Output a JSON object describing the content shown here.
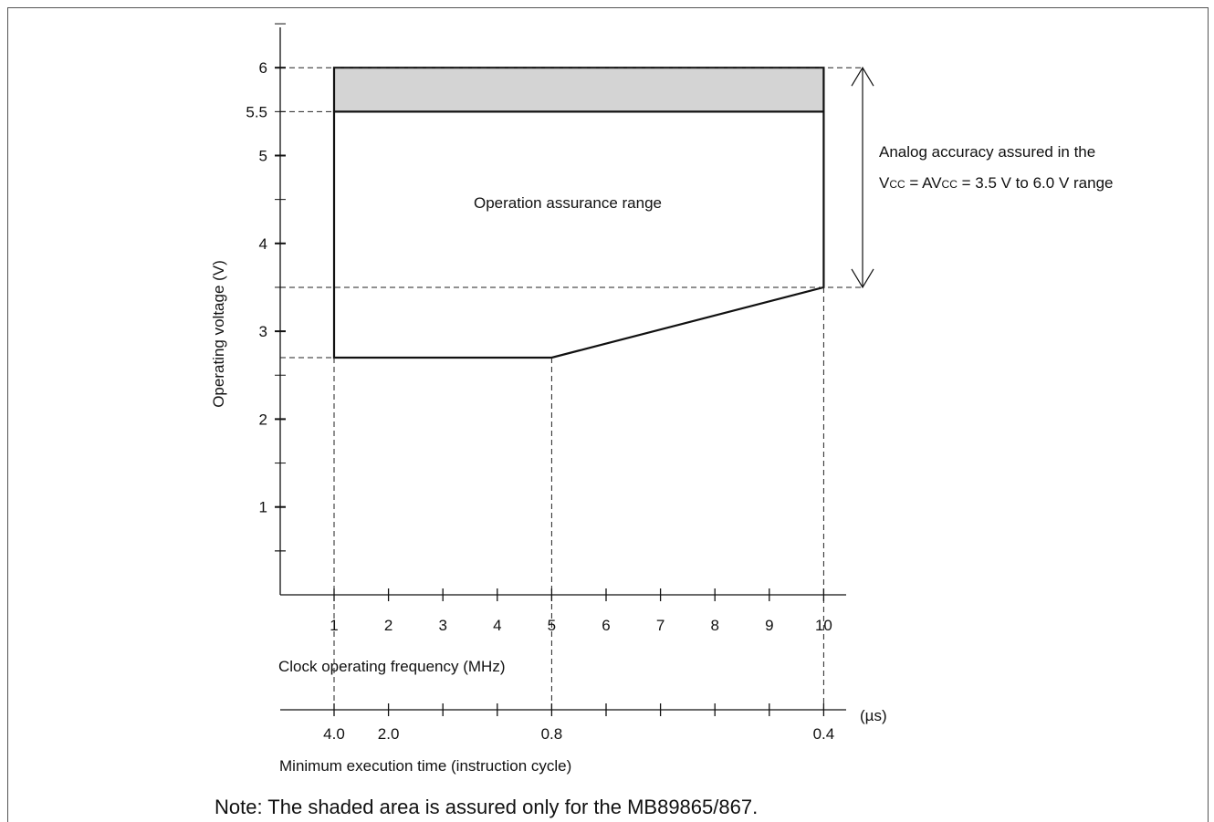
{
  "chart_data": {
    "type": "area",
    "title": "",
    "ylabel": "Operating voltage (V)",
    "xlabel": "Clock operating frequency (MHz)",
    "x_ticks": [
      "1",
      "2",
      "3",
      "4",
      "5",
      "6",
      "7",
      "8",
      "9",
      "10"
    ],
    "y_ticks": [
      "1",
      "2",
      "3",
      "4",
      "5",
      "5.5",
      "6"
    ],
    "ylim": [
      0,
      6.5
    ],
    "xlim": [
      1,
      10
    ],
    "secondary_axis": {
      "label": "Minimum execution time (instruction cycle)",
      "unit": "(µs)",
      "ticks": [
        {
          "at": 1,
          "label": "4.0"
        },
        {
          "at": 2,
          "label": "2.0"
        },
        {
          "at": 3,
          "label": ""
        },
        {
          "at": 4,
          "label": ""
        },
        {
          "at": 5,
          "label": "0.8"
        },
        {
          "at": 6,
          "label": ""
        },
        {
          "at": 7,
          "label": ""
        },
        {
          "at": 8,
          "label": ""
        },
        {
          "at": 9,
          "label": ""
        },
        {
          "at": 10,
          "label": "0.4"
        }
      ]
    },
    "regions": [
      {
        "name": "Operation assurance range",
        "fill": "#ffffff",
        "points": [
          [
            1,
            2.7
          ],
          [
            5,
            2.7
          ],
          [
            10,
            3.5
          ],
          [
            10,
            5.5
          ],
          [
            1,
            5.5
          ]
        ]
      },
      {
        "name": "shaded",
        "fill": "#d4d4d4",
        "points": [
          [
            1,
            5.5
          ],
          [
            10,
            5.5
          ],
          [
            10,
            6.0
          ],
          [
            1,
            6.0
          ]
        ]
      }
    ],
    "guide_lines": {
      "horizontal": [
        6.0,
        5.5,
        3.5,
        2.7
      ],
      "vertical": [
        1,
        5,
        10
      ]
    },
    "annotation": {
      "line1": "Analog  accuracy assured in the",
      "line2": "V",
      "line2_sub1": "CC",
      "line2_mid": " = AV",
      "line2_sub2": "CC",
      "line2_end": " = 3.5 V to 6.0 V range",
      "range": [
        3.5,
        6.0
      ]
    },
    "region_label": "Operation assurance range",
    "colors": {
      "shaded": "#d4d4d4",
      "line": "#111111"
    }
  },
  "note": "Note: The shaded area is assured only for the MB89865/867."
}
